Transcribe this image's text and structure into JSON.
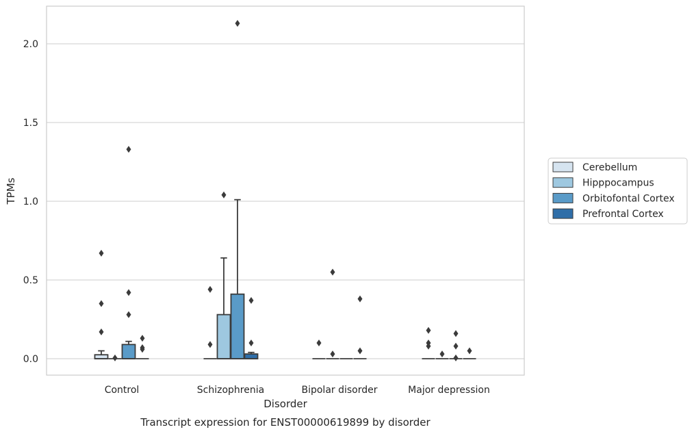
{
  "chart_data": {
    "type": "box",
    "title": "Transcript expression for ENST00000619899 by disorder",
    "xlabel": "Disorder",
    "ylabel": "TPMs",
    "ylim": [
      -0.1,
      2.25
    ],
    "yticks": [
      "0.0",
      "0.5",
      "1.0",
      "1.5",
      "2.0"
    ],
    "grid": "horizontal",
    "legend_position": "right",
    "categories": [
      "Control",
      "Schizophrenia",
      "Bipolar disorder",
      "Major depression"
    ],
    "series": [
      {
        "name": "Cerebellum",
        "color": "#d6e4f0",
        "boxes": [
          {
            "q1": 0.0,
            "median": 0.0,
            "q3": 0.025,
            "whisker_low": 0.0,
            "whisker_high": 0.05,
            "outliers": [
              0.67,
              0.35,
              0.17
            ]
          },
          {
            "q1": 0.0,
            "median": 0.0,
            "q3": 0.0,
            "whisker_low": 0.0,
            "whisker_high": 0.0,
            "outliers": [
              0.44,
              0.09
            ]
          },
          {
            "q1": 0.0,
            "median": 0.0,
            "q3": 0.0,
            "whisker_low": 0.0,
            "whisker_high": 0.0,
            "outliers": [
              0.1
            ]
          },
          {
            "q1": 0.0,
            "median": 0.0,
            "q3": 0.0,
            "whisker_low": 0.0,
            "whisker_high": 0.0,
            "outliers": [
              0.18,
              0.1,
              0.08
            ]
          }
        ]
      },
      {
        "name": "Hipppocampus",
        "color": "#9ec8e0",
        "boxes": [
          {
            "q1": 0.0,
            "median": 0.0,
            "q3": 0.0,
            "whisker_low": 0.0,
            "whisker_high": 0.0,
            "outliers": [
              0.005
            ]
          },
          {
            "q1": 0.0,
            "median": 0.0,
            "q3": 0.28,
            "whisker_low": 0.0,
            "whisker_high": 0.64,
            "outliers": [
              1.04
            ]
          },
          {
            "q1": 0.0,
            "median": 0.0,
            "q3": 0.0,
            "whisker_low": 0.0,
            "whisker_high": 0.0,
            "outliers": [
              0.55,
              0.03
            ]
          },
          {
            "q1": 0.0,
            "median": 0.0,
            "q3": 0.0,
            "whisker_low": 0.0,
            "whisker_high": 0.0,
            "outliers": [
              0.03
            ]
          }
        ]
      },
      {
        "name": "Orbitofontal Cortex",
        "color": "#5a9bc8",
        "boxes": [
          {
            "q1": 0.0,
            "median": 0.0,
            "q3": 0.09,
            "whisker_low": 0.0,
            "whisker_high": 0.11,
            "outliers": [
              1.33,
              0.42,
              0.28
            ]
          },
          {
            "q1": 0.0,
            "median": 0.0,
            "q3": 0.41,
            "whisker_low": 0.0,
            "whisker_high": 1.01,
            "outliers": [
              2.13
            ]
          },
          {
            "q1": 0.0,
            "median": 0.0,
            "q3": 0.0,
            "whisker_low": 0.0,
            "whisker_high": 0.0,
            "outliers": []
          },
          {
            "q1": 0.0,
            "median": 0.0,
            "q3": 0.0,
            "whisker_low": 0.0,
            "whisker_high": 0.0,
            "outliers": [
              0.16,
              0.08,
              0.005
            ]
          }
        ]
      },
      {
        "name": "Prefrontal Cortex",
        "color": "#2f6ea8",
        "boxes": [
          {
            "q1": 0.0,
            "median": 0.0,
            "q3": 0.0,
            "whisker_low": 0.0,
            "whisker_high": 0.0,
            "outliers": [
              0.13,
              0.07,
              0.06
            ]
          },
          {
            "q1": 0.0,
            "median": 0.0,
            "q3": 0.03,
            "whisker_low": 0.0,
            "whisker_high": 0.04,
            "outliers": [
              0.37,
              0.1
            ]
          },
          {
            "q1": 0.0,
            "median": 0.0,
            "q3": 0.0,
            "whisker_low": 0.0,
            "whisker_high": 0.0,
            "outliers": [
              0.38,
              0.05
            ]
          },
          {
            "q1": 0.0,
            "median": 0.0,
            "q3": 0.0,
            "whisker_low": 0.0,
            "whisker_high": 0.0,
            "outliers": [
              0.05
            ]
          }
        ]
      }
    ]
  }
}
